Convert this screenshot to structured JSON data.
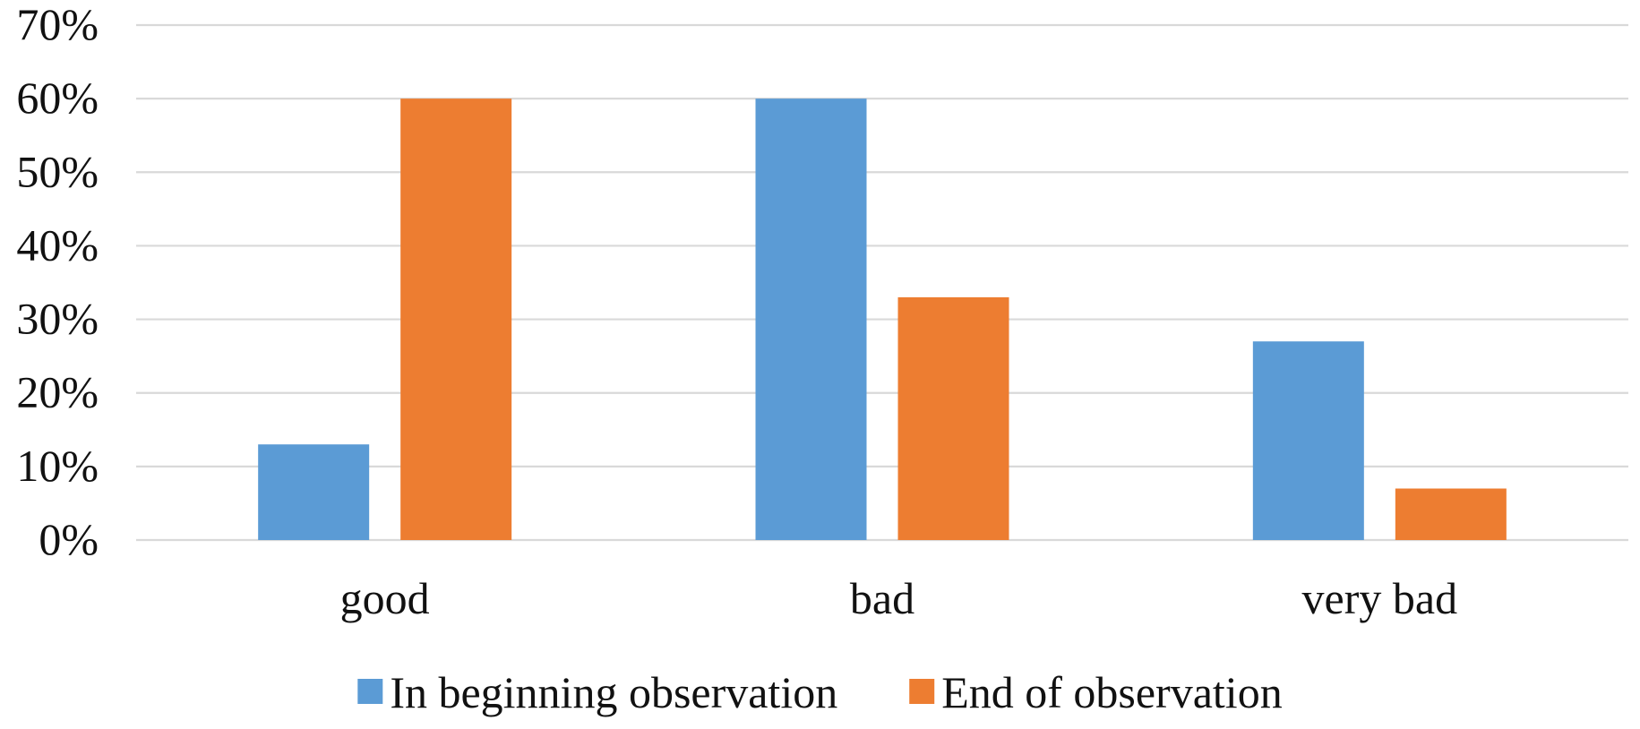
{
  "chart_data": {
    "type": "bar",
    "categories": [
      "good",
      "bad",
      "very bad"
    ],
    "series": [
      {
        "name": "In beginning observation",
        "values": [
          13,
          60,
          27
        ],
        "color": "#5B9BD5"
      },
      {
        "name": "End of observation",
        "values": [
          60,
          33,
          7
        ],
        "color": "#ED7D31"
      }
    ],
    "y_ticks": [
      "0%",
      "10%",
      "20%",
      "30%",
      "40%",
      "50%",
      "60%",
      "70%"
    ],
    "ylim": [
      0,
      70
    ],
    "y_unit": "percent",
    "grid": true,
    "gridline_color": "#D9D9D9",
    "legend_position": "bottom"
  }
}
